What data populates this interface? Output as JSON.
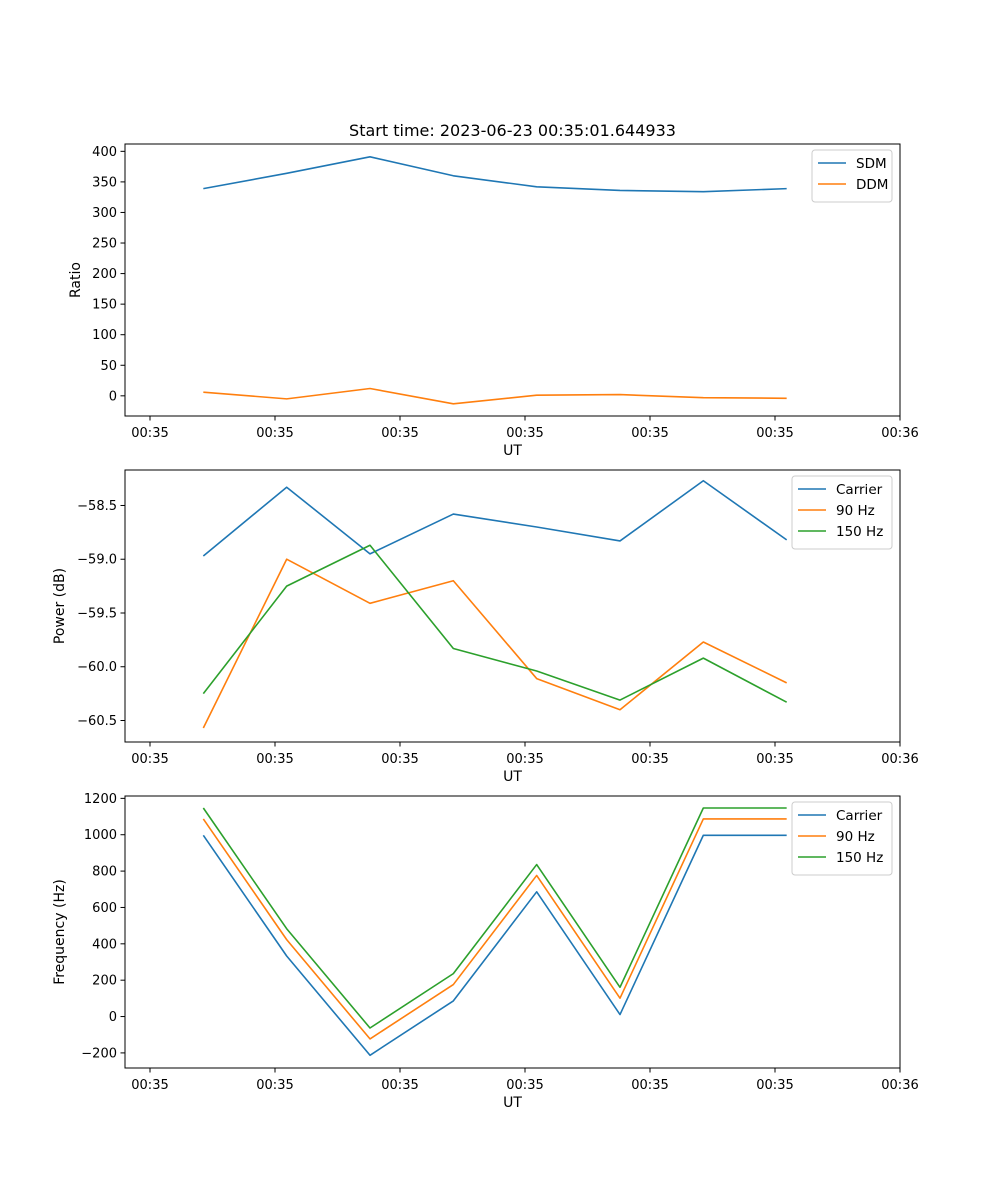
{
  "figure_title": "Start time: 2023-06-23 00:35:01.644933",
  "chart_data": [
    {
      "type": "line",
      "title": "Start time: 2023-06-23 00:35:01.644933",
      "xlabel": "UT",
      "ylabel": "Ratio",
      "x": [
        1.64,
        2.64,
        3.64,
        4.64,
        5.64,
        6.64,
        7.64,
        8.64
      ],
      "x_unit": "seconds after 00:35:00",
      "xlim": [
        0.7,
        10.0
      ],
      "x_ticks": [
        1,
        2.5,
        4,
        5.5,
        7,
        8.5,
        10
      ],
      "x_tick_labels": [
        "00:35",
        "00:35",
        "00:35",
        "00:35",
        "00:35",
        "00:35",
        "00:36"
      ],
      "ylim": [
        -33,
        412
      ],
      "y_ticks": [
        0,
        50,
        100,
        150,
        200,
        250,
        300,
        350,
        400
      ],
      "y_tick_labels": [
        "0",
        "50",
        "100",
        "150",
        "200",
        "250",
        "300",
        "350",
        "400"
      ],
      "legend_position": "top-right",
      "grid": false,
      "series": [
        {
          "name": "SDM",
          "color": "#1f77b4",
          "values": [
            339,
            364,
            391,
            360,
            342,
            336,
            334,
            339
          ]
        },
        {
          "name": "DDM",
          "color": "#ff7f0e",
          "values": [
            6,
            -5,
            12,
            -13,
            1,
            2,
            -3,
            -4
          ]
        }
      ]
    },
    {
      "type": "line",
      "title": "",
      "xlabel": "UT",
      "ylabel": "Power (dB)",
      "x": [
        1.64,
        2.64,
        3.64,
        4.64,
        5.64,
        6.64,
        7.64,
        8.64
      ],
      "x_unit": "seconds after 00:35:00",
      "xlim": [
        0.7,
        10.0
      ],
      "x_ticks": [
        1,
        2.5,
        4,
        5.5,
        7,
        8.5,
        10
      ],
      "x_tick_labels": [
        "00:35",
        "00:35",
        "00:35",
        "00:35",
        "00:35",
        "00:35",
        "00:36"
      ],
      "ylim": [
        -60.7,
        -58.17
      ],
      "y_ticks": [
        -60.5,
        -60.0,
        -59.5,
        -59.0,
        -58.5
      ],
      "y_tick_labels": [
        "−60.5",
        "−60.0",
        "−59.5",
        "−59.0",
        "−58.5"
      ],
      "legend_position": "top-right",
      "grid": false,
      "series": [
        {
          "name": "Carrier",
          "color": "#1f77b4",
          "values": [
            -58.97,
            -58.33,
            -58.95,
            -58.58,
            -58.7,
            -58.83,
            -58.27,
            -58.82
          ]
        },
        {
          "name": "90 Hz",
          "color": "#ff7f0e",
          "values": [
            -60.57,
            -59.0,
            -59.41,
            -59.2,
            -60.11,
            -60.4,
            -59.77,
            -60.15
          ]
        },
        {
          "name": "150 Hz",
          "color": "#2ca02c",
          "values": [
            -60.25,
            -59.25,
            -58.87,
            -59.83,
            -60.04,
            -60.31,
            -59.92,
            -60.33
          ]
        }
      ]
    },
    {
      "type": "line",
      "title": "",
      "xlabel": "UT",
      "ylabel": "Frequency (Hz)",
      "x": [
        1.64,
        2.64,
        3.64,
        4.64,
        5.64,
        6.64,
        7.64,
        8.64
      ],
      "x_unit": "seconds after 00:35:00",
      "xlim": [
        0.7,
        10.0
      ],
      "x_ticks": [
        1,
        2.5,
        4,
        5.5,
        7,
        8.5,
        10
      ],
      "x_tick_labels": [
        "00:35",
        "00:35",
        "00:35",
        "00:35",
        "00:35",
        "00:35",
        "00:36"
      ],
      "ylim": [
        -283,
        1213
      ],
      "y_ticks": [
        -200,
        0,
        200,
        400,
        600,
        800,
        1000,
        1200
      ],
      "y_tick_labels": [
        "−200",
        "0",
        "200",
        "400",
        "600",
        "800",
        "1000",
        "1200"
      ],
      "legend_position": "top-right",
      "grid": false,
      "series": [
        {
          "name": "Carrier",
          "color": "#1f77b4",
          "values": [
            997,
            333,
            -213,
            86,
            686,
            11,
            997,
            997
          ]
        },
        {
          "name": "90 Hz",
          "color": "#ff7f0e",
          "values": [
            1087,
            423,
            -123,
            176,
            776,
            101,
            1087,
            1087
          ]
        },
        {
          "name": "150 Hz",
          "color": "#2ca02c",
          "values": [
            1147,
            483,
            -63,
            236,
            836,
            161,
            1147,
            1147
          ]
        }
      ]
    }
  ]
}
